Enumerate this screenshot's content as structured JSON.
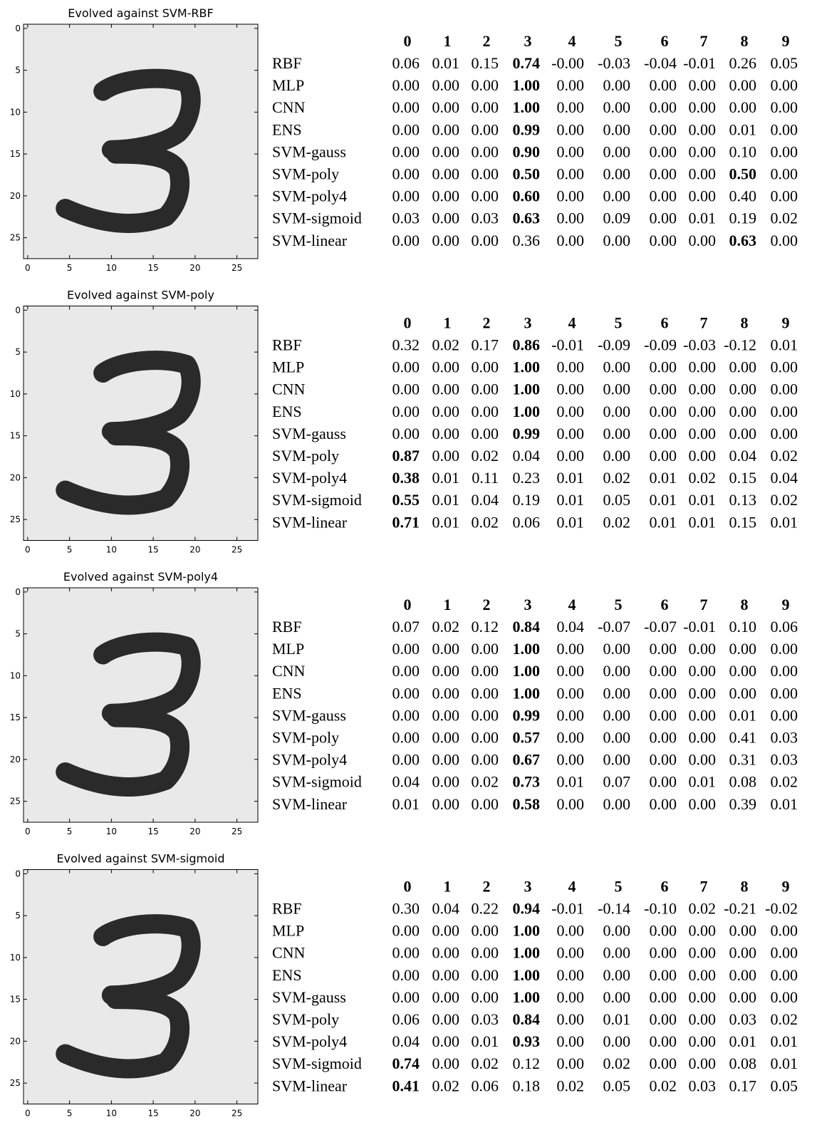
{
  "panels": [
    {
      "title": "Evolved against SVM-RBF",
      "xlim": [
        -0.5,
        27.5
      ],
      "ylim": [
        27.5,
        -0.5
      ],
      "xticks": [
        0,
        5,
        10,
        15,
        20,
        25
      ],
      "yticks": [
        0,
        5,
        10,
        15,
        20,
        25
      ],
      "table": {
        "columns": [
          "0",
          "1",
          "2",
          "3",
          "4",
          "5",
          "6",
          "7",
          "8",
          "9"
        ],
        "rows": [
          {
            "label": "RBF",
            "values": [
              "0.06",
              "0.01",
              "0.15",
              "0.74",
              "-0.00",
              "-0.03",
              "-0.04",
              "-0.01",
              "0.26",
              "0.05"
            ],
            "bold": [
              3
            ]
          },
          {
            "label": "MLP",
            "values": [
              "0.00",
              "0.00",
              "0.00",
              "1.00",
              "0.00",
              "0.00",
              "0.00",
              "0.00",
              "0.00",
              "0.00"
            ],
            "bold": [
              3
            ]
          },
          {
            "label": "CNN",
            "values": [
              "0.00",
              "0.00",
              "0.00",
              "1.00",
              "0.00",
              "0.00",
              "0.00",
              "0.00",
              "0.00",
              "0.00"
            ],
            "bold": [
              3
            ]
          },
          {
            "label": "ENS",
            "values": [
              "0.00",
              "0.00",
              "0.00",
              "0.99",
              "0.00",
              "0.00",
              "0.00",
              "0.00",
              "0.01",
              "0.00"
            ],
            "bold": [
              3
            ]
          },
          {
            "label": "SVM-gauss",
            "values": [
              "0.00",
              "0.00",
              "0.00",
              "0.90",
              "0.00",
              "0.00",
              "0.00",
              "0.00",
              "0.10",
              "0.00"
            ],
            "bold": [
              3
            ]
          },
          {
            "label": "SVM-poly",
            "values": [
              "0.00",
              "0.00",
              "0.00",
              "0.50",
              "0.00",
              "0.00",
              "0.00",
              "0.00",
              "0.50",
              "0.00"
            ],
            "bold": [
              3,
              8
            ]
          },
          {
            "label": "SVM-poly4",
            "values": [
              "0.00",
              "0.00",
              "0.00",
              "0.60",
              "0.00",
              "0.00",
              "0.00",
              "0.00",
              "0.40",
              "0.00"
            ],
            "bold": [
              3
            ]
          },
          {
            "label": "SVM-sigmoid",
            "values": [
              "0.03",
              "0.00",
              "0.03",
              "0.63",
              "0.00",
              "0.09",
              "0.00",
              "0.01",
              "0.19",
              "0.02"
            ],
            "bold": [
              3
            ]
          },
          {
            "label": "SVM-linear",
            "values": [
              "0.00",
              "0.00",
              "0.00",
              "0.36",
              "0.00",
              "0.00",
              "0.00",
              "0.00",
              "0.63",
              "0.00"
            ],
            "bold": [
              8
            ]
          }
        ]
      }
    },
    {
      "title": "Evolved against SVM-poly",
      "xlim": [
        -0.5,
        27.5
      ],
      "ylim": [
        27.5,
        -0.5
      ],
      "xticks": [
        0,
        5,
        10,
        15,
        20,
        25
      ],
      "yticks": [
        0,
        5,
        10,
        15,
        20,
        25
      ],
      "table": {
        "columns": [
          "0",
          "1",
          "2",
          "3",
          "4",
          "5",
          "6",
          "7",
          "8",
          "9"
        ],
        "rows": [
          {
            "label": "RBF",
            "values": [
              "0.32",
              "0.02",
              "0.17",
              "0.86",
              "-0.01",
              "-0.09",
              "-0.09",
              "-0.03",
              "-0.12",
              "0.01"
            ],
            "bold": [
              3
            ]
          },
          {
            "label": "MLP",
            "values": [
              "0.00",
              "0.00",
              "0.00",
              "1.00",
              "0.00",
              "0.00",
              "0.00",
              "0.00",
              "0.00",
              "0.00"
            ],
            "bold": [
              3
            ]
          },
          {
            "label": "CNN",
            "values": [
              "0.00",
              "0.00",
              "0.00",
              "1.00",
              "0.00",
              "0.00",
              "0.00",
              "0.00",
              "0.00",
              "0.00"
            ],
            "bold": [
              3
            ]
          },
          {
            "label": "ENS",
            "values": [
              "0.00",
              "0.00",
              "0.00",
              "1.00",
              "0.00",
              "0.00",
              "0.00",
              "0.00",
              "0.00",
              "0.00"
            ],
            "bold": [
              3
            ]
          },
          {
            "label": "SVM-gauss",
            "values": [
              "0.00",
              "0.00",
              "0.00",
              "0.99",
              "0.00",
              "0.00",
              "0.00",
              "0.00",
              "0.00",
              "0.00"
            ],
            "bold": [
              3
            ]
          },
          {
            "label": "SVM-poly",
            "values": [
              "0.87",
              "0.00",
              "0.02",
              "0.04",
              "0.00",
              "0.00",
              "0.00",
              "0.00",
              "0.04",
              "0.02"
            ],
            "bold": [
              0
            ]
          },
          {
            "label": "SVM-poly4",
            "values": [
              "0.38",
              "0.01",
              "0.11",
              "0.23",
              "0.01",
              "0.02",
              "0.01",
              "0.02",
              "0.15",
              "0.04"
            ],
            "bold": [
              0
            ]
          },
          {
            "label": "SVM-sigmoid",
            "values": [
              "0.55",
              "0.01",
              "0.04",
              "0.19",
              "0.01",
              "0.05",
              "0.01",
              "0.01",
              "0.13",
              "0.02"
            ],
            "bold": [
              0
            ]
          },
          {
            "label": "SVM-linear",
            "values": [
              "0.71",
              "0.01",
              "0.02",
              "0.06",
              "0.01",
              "0.02",
              "0.01",
              "0.01",
              "0.15",
              "0.01"
            ],
            "bold": [
              0
            ]
          }
        ]
      }
    },
    {
      "title": "Evolved against SVM-poly4",
      "xlim": [
        -0.5,
        27.5
      ],
      "ylim": [
        27.5,
        -0.5
      ],
      "xticks": [
        0,
        5,
        10,
        15,
        20,
        25
      ],
      "yticks": [
        0,
        5,
        10,
        15,
        20,
        25
      ],
      "table": {
        "columns": [
          "0",
          "1",
          "2",
          "3",
          "4",
          "5",
          "6",
          "7",
          "8",
          "9"
        ],
        "rows": [
          {
            "label": "RBF",
            "values": [
              "0.07",
              "0.02",
              "0.12",
              "0.84",
              "0.04",
              "-0.07",
              "-0.07",
              "-0.01",
              "0.10",
              "0.06"
            ],
            "bold": [
              3
            ]
          },
          {
            "label": "MLP",
            "values": [
              "0.00",
              "0.00",
              "0.00",
              "1.00",
              "0.00",
              "0.00",
              "0.00",
              "0.00",
              "0.00",
              "0.00"
            ],
            "bold": [
              3
            ]
          },
          {
            "label": "CNN",
            "values": [
              "0.00",
              "0.00",
              "0.00",
              "1.00",
              "0.00",
              "0.00",
              "0.00",
              "0.00",
              "0.00",
              "0.00"
            ],
            "bold": [
              3
            ]
          },
          {
            "label": "ENS",
            "values": [
              "0.00",
              "0.00",
              "0.00",
              "1.00",
              "0.00",
              "0.00",
              "0.00",
              "0.00",
              "0.00",
              "0.00"
            ],
            "bold": [
              3
            ]
          },
          {
            "label": "SVM-gauss",
            "values": [
              "0.00",
              "0.00",
              "0.00",
              "0.99",
              "0.00",
              "0.00",
              "0.00",
              "0.00",
              "0.01",
              "0.00"
            ],
            "bold": [
              3
            ]
          },
          {
            "label": "SVM-poly",
            "values": [
              "0.00",
              "0.00",
              "0.00",
              "0.57",
              "0.00",
              "0.00",
              "0.00",
              "0.00",
              "0.41",
              "0.03"
            ],
            "bold": [
              3
            ]
          },
          {
            "label": "SVM-poly4",
            "values": [
              "0.00",
              "0.00",
              "0.00",
              "0.67",
              "0.00",
              "0.00",
              "0.00",
              "0.00",
              "0.31",
              "0.03"
            ],
            "bold": [
              3
            ]
          },
          {
            "label": "SVM-sigmoid",
            "values": [
              "0.04",
              "0.00",
              "0.02",
              "0.73",
              "0.01",
              "0.07",
              "0.00",
              "0.01",
              "0.08",
              "0.02"
            ],
            "bold": [
              3
            ]
          },
          {
            "label": "SVM-linear",
            "values": [
              "0.01",
              "0.00",
              "0.00",
              "0.58",
              "0.00",
              "0.00",
              "0.00",
              "0.00",
              "0.39",
              "0.01"
            ],
            "bold": [
              3
            ]
          }
        ]
      }
    },
    {
      "title": "Evolved against SVM-sigmoid",
      "xlim": [
        -0.5,
        27.5
      ],
      "ylim": [
        27.5,
        -0.5
      ],
      "xticks": [
        0,
        5,
        10,
        15,
        20,
        25
      ],
      "yticks": [
        0,
        5,
        10,
        15,
        20,
        25
      ],
      "table": {
        "columns": [
          "0",
          "1",
          "2",
          "3",
          "4",
          "5",
          "6",
          "7",
          "8",
          "9"
        ],
        "rows": [
          {
            "label": "RBF",
            "values": [
              "0.30",
              "0.04",
              "0.22",
              "0.94",
              "-0.01",
              "-0.14",
              "-0.10",
              "0.02",
              "-0.21",
              "-0.02"
            ],
            "bold": [
              3
            ]
          },
          {
            "label": "MLP",
            "values": [
              "0.00",
              "0.00",
              "0.00",
              "1.00",
              "0.00",
              "0.00",
              "0.00",
              "0.00",
              "0.00",
              "0.00"
            ],
            "bold": [
              3
            ]
          },
          {
            "label": "CNN",
            "values": [
              "0.00",
              "0.00",
              "0.00",
              "1.00",
              "0.00",
              "0.00",
              "0.00",
              "0.00",
              "0.00",
              "0.00"
            ],
            "bold": [
              3
            ]
          },
          {
            "label": "ENS",
            "values": [
              "0.00",
              "0.00",
              "0.00",
              "1.00",
              "0.00",
              "0.00",
              "0.00",
              "0.00",
              "0.00",
              "0.00"
            ],
            "bold": [
              3
            ]
          },
          {
            "label": "SVM-gauss",
            "values": [
              "0.00",
              "0.00",
              "0.00",
              "1.00",
              "0.00",
              "0.00",
              "0.00",
              "0.00",
              "0.00",
              "0.00"
            ],
            "bold": [
              3
            ]
          },
          {
            "label": "SVM-poly",
            "values": [
              "0.06",
              "0.00",
              "0.03",
              "0.84",
              "0.00",
              "0.01",
              "0.00",
              "0.00",
              "0.03",
              "0.02"
            ],
            "bold": [
              3
            ]
          },
          {
            "label": "SVM-poly4",
            "values": [
              "0.04",
              "0.00",
              "0.01",
              "0.93",
              "0.00",
              "0.00",
              "0.00",
              "0.00",
              "0.01",
              "0.01"
            ],
            "bold": [
              3
            ]
          },
          {
            "label": "SVM-sigmoid",
            "values": [
              "0.74",
              "0.00",
              "0.02",
              "0.12",
              "0.00",
              "0.02",
              "0.00",
              "0.00",
              "0.08",
              "0.01"
            ],
            "bold": [
              0
            ]
          },
          {
            "label": "SVM-linear",
            "values": [
              "0.41",
              "0.02",
              "0.06",
              "0.18",
              "0.02",
              "0.05",
              "0.02",
              "0.03",
              "0.17",
              "0.05"
            ],
            "bold": [
              0
            ]
          }
        ]
      }
    }
  ]
}
